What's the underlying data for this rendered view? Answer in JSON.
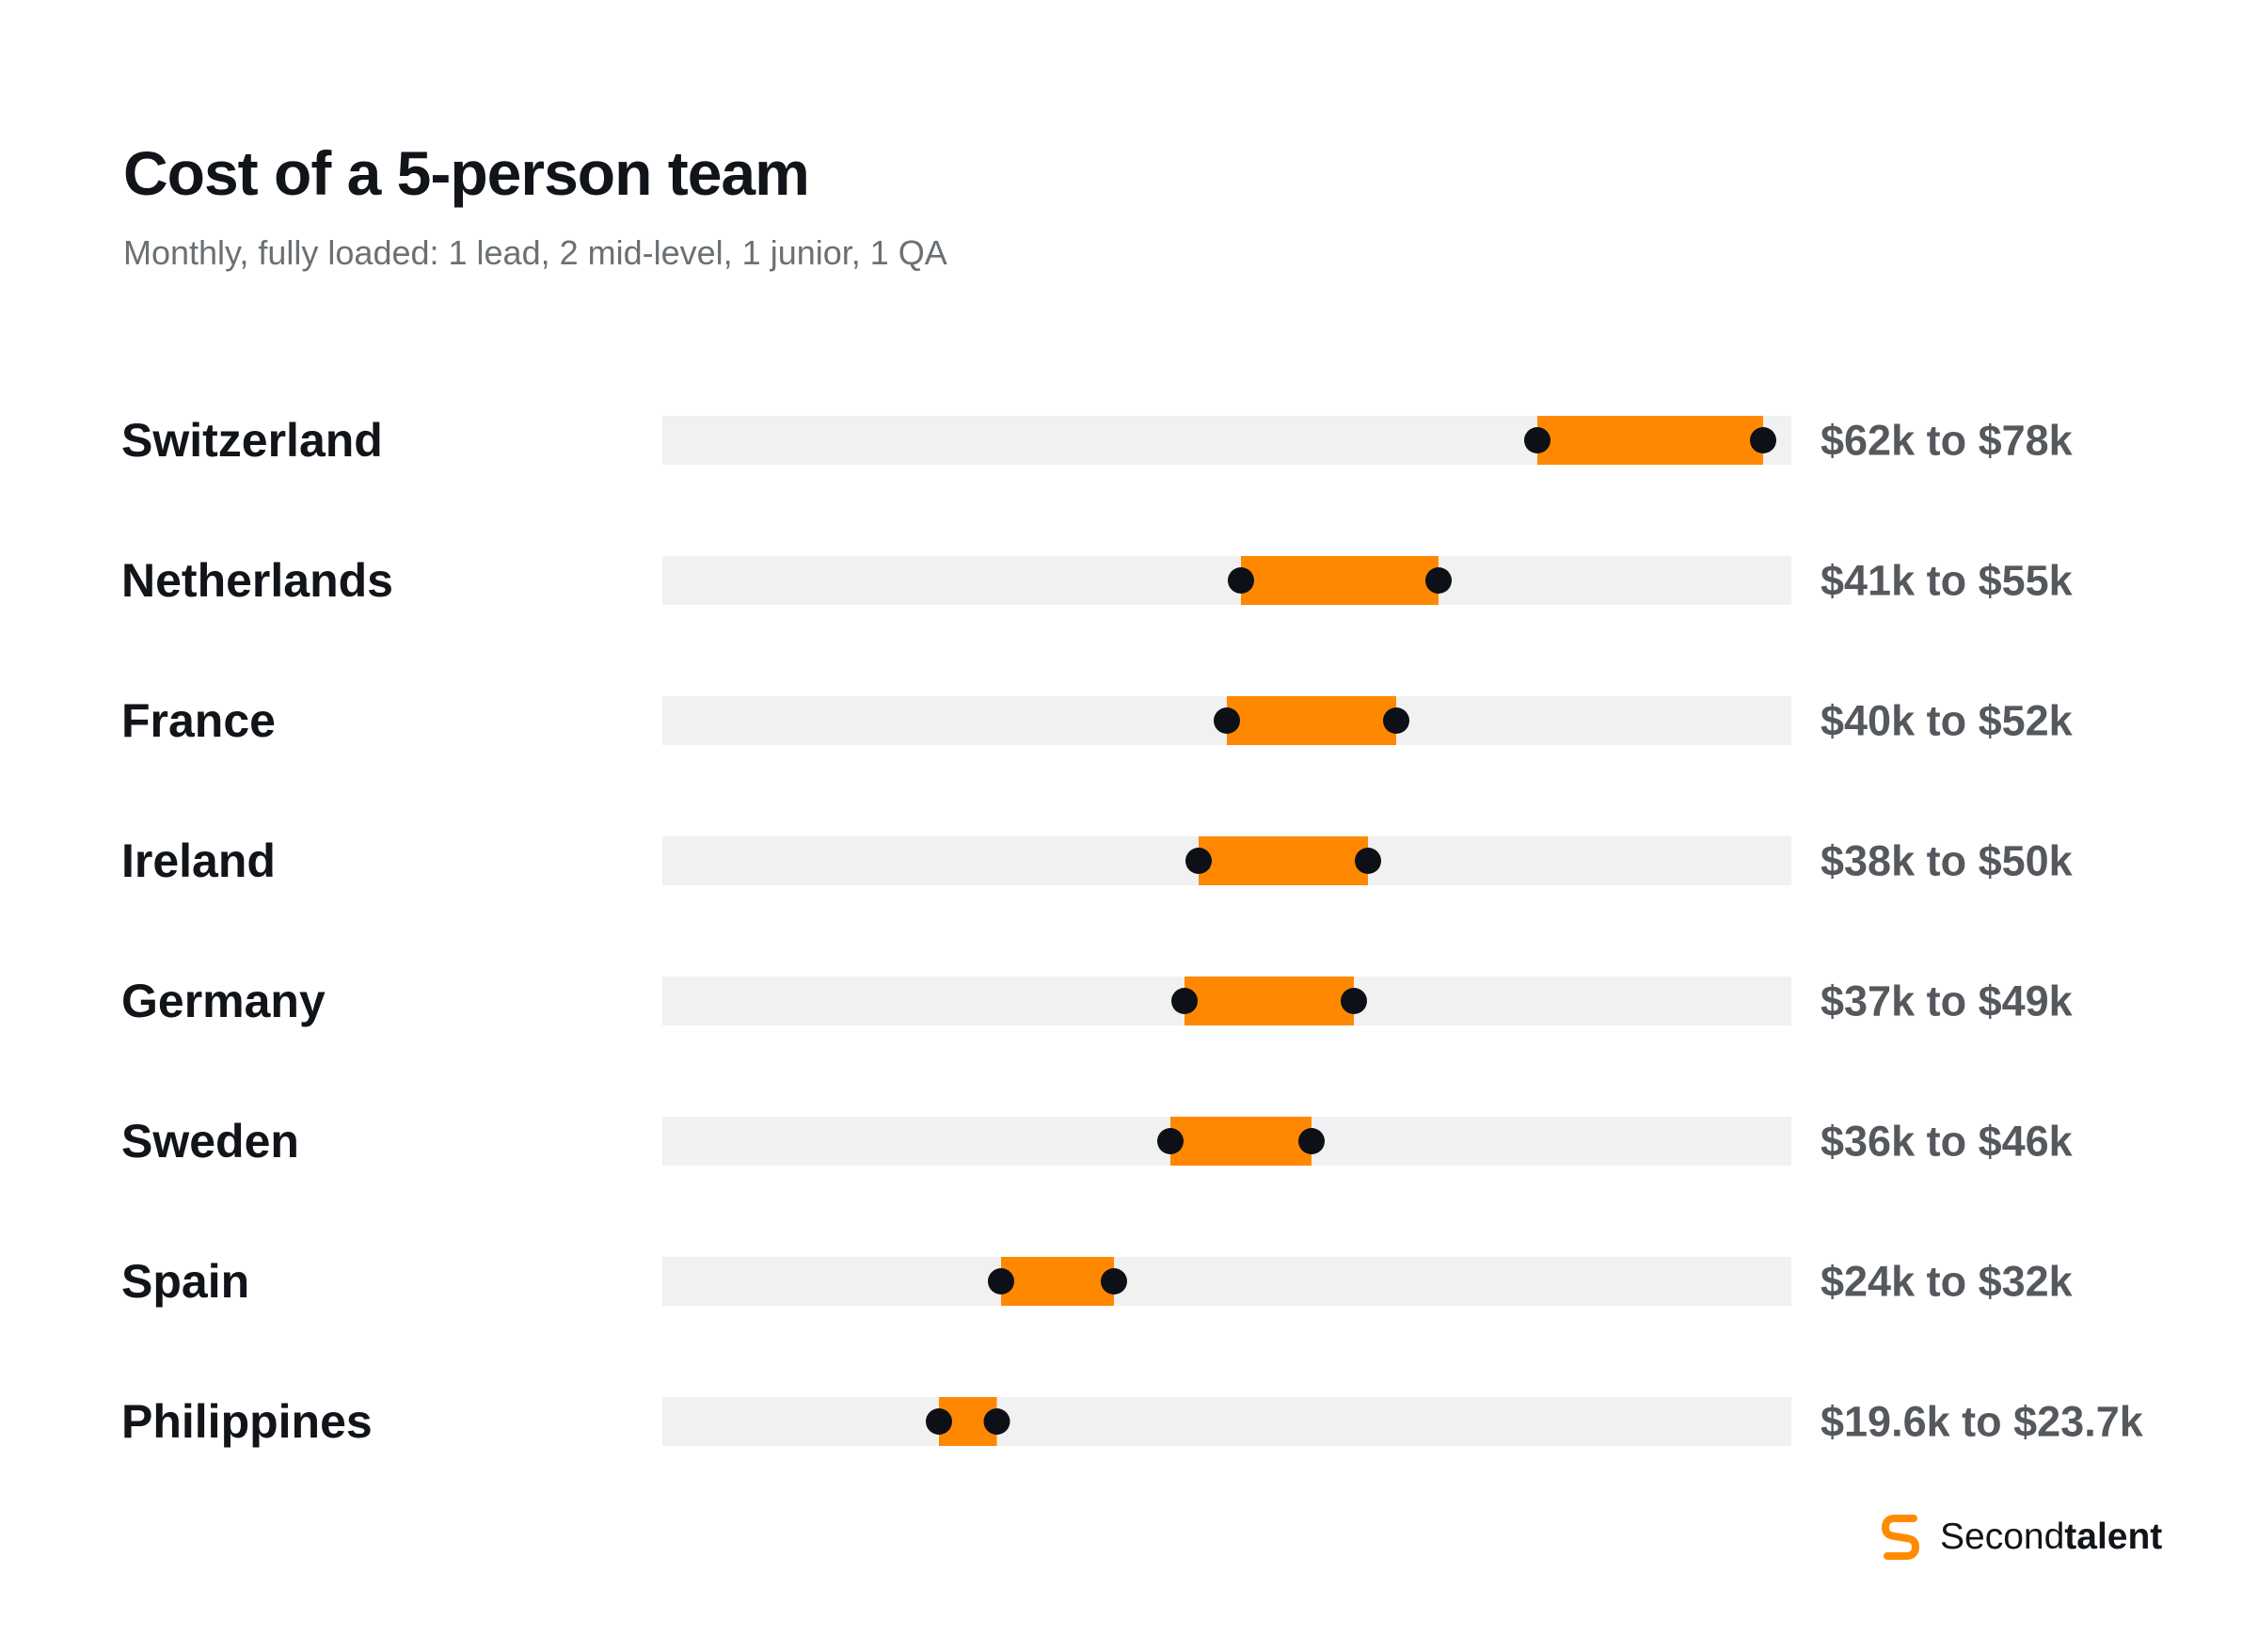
{
  "header": {
    "title": "Cost of a 5-person team",
    "subtitle": "Monthly, fully loaded: 1 lead, 2 mid-level, 1 junior, 1 QA"
  },
  "brand": {
    "name_regular": "Second",
    "name_bold": "talent",
    "icon": "secondtalent-logo-icon",
    "color": "#ff8c00"
  },
  "colors": {
    "range_bar": "#ff8800",
    "track": "#f0f1f0",
    "endpoint": "#0d1017"
  },
  "chart_data": {
    "type": "range",
    "title": "Cost of a 5-person team",
    "subtitle": "Monthly, fully loaded: 1 lead, 2 mid-level, 1 junior, 1 QA",
    "unit": "$k",
    "xlim": [
      0,
      80
    ],
    "grid": false,
    "categories": [
      "Switzerland",
      "Netherlands",
      "France",
      "Ireland",
      "Germany",
      "Sweden",
      "Spain",
      "Philippines"
    ],
    "low": [
      62,
      41,
      40,
      38,
      37,
      36,
      24,
      19.6
    ],
    "high": [
      78,
      55,
      52,
      50,
      49,
      46,
      32,
      23.7
    ],
    "labels": [
      "$62k to $78k",
      "$41k to $55k",
      "$40k to $52k",
      "$38k to $50k",
      "$37k to $49k",
      "$36k to $46k",
      "$24k to $32k",
      "$19.6k to $23.7k"
    ]
  }
}
